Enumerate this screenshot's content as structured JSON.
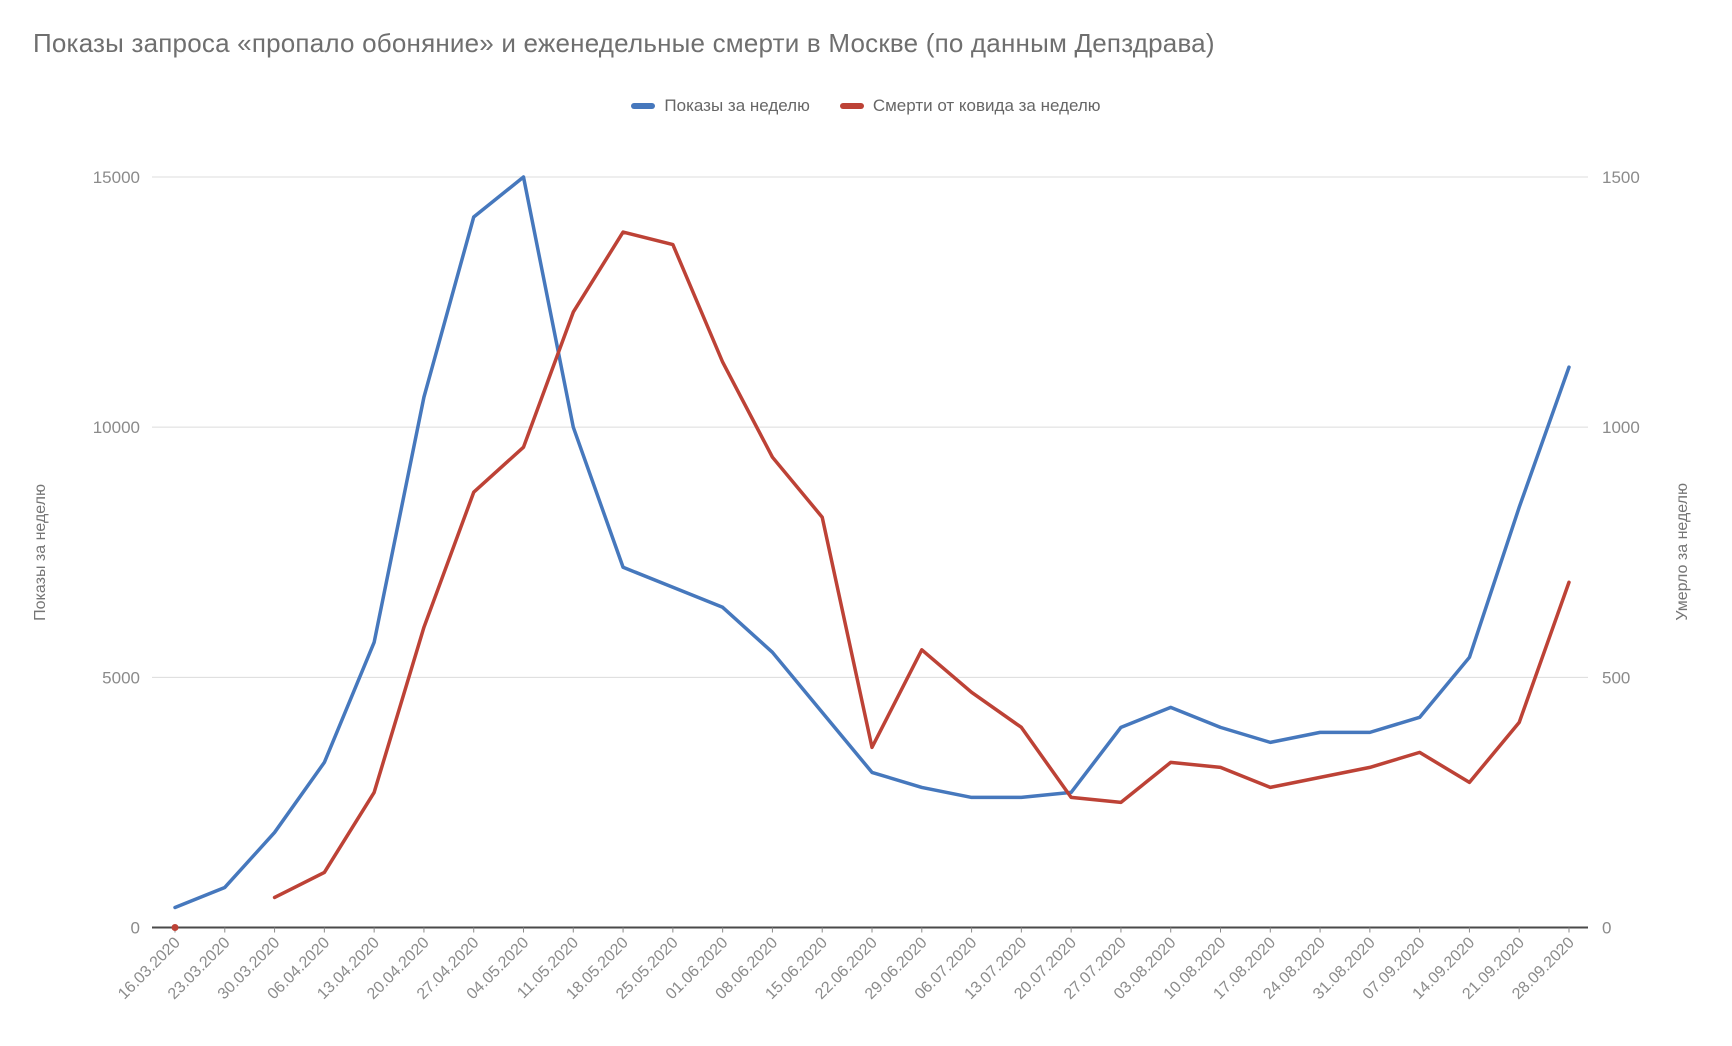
{
  "chart_data": {
    "type": "line",
    "title": "Показы запроса «пропало обоняние» и еженедельные смерти в Москве (по данным Депздрава)",
    "categories": [
      "16.03.2020",
      "23.03.2020",
      "30.03.2020",
      "06.04.2020",
      "13.04.2020",
      "20.04.2020",
      "27.04.2020",
      "04.05.2020",
      "11.05.2020",
      "18.05.2020",
      "25.05.2020",
      "01.06.2020",
      "08.06.2020",
      "15.06.2020",
      "22.06.2020",
      "29.06.2020",
      "06.07.2020",
      "13.07.2020",
      "20.07.2020",
      "27.07.2020",
      "03.08.2020",
      "10.08.2020",
      "17.08.2020",
      "24.08.2020",
      "31.08.2020",
      "07.09.2020",
      "14.09.2020",
      "21.09.2020",
      "28.09.2020"
    ],
    "series": [
      {
        "name": "Показы за неделю",
        "axis": "left",
        "color": "#4678bd",
        "values": [
          400,
          800,
          1900,
          3300,
          5700,
          10600,
          14200,
          15000,
          10000,
          7200,
          6800,
          6400,
          5500,
          4300,
          3100,
          2800,
          2600,
          2600,
          2700,
          4000,
          4400,
          4000,
          3700,
          3900,
          3900,
          4200,
          5400,
          8400,
          11200
        ]
      },
      {
        "name": "Смерти от ковида за неделю",
        "axis": "right",
        "color": "#bd4236",
        "values": [
          0,
          null,
          60,
          110,
          270,
          600,
          870,
          960,
          1230,
          1390,
          1365,
          1130,
          940,
          820,
          360,
          555,
          470,
          400,
          260,
          250,
          330,
          320,
          280,
          300,
          320,
          350,
          290,
          410,
          690
        ]
      }
    ],
    "ylabel_left": "Показы за неделю",
    "ylabel_right": "Умерло за неделю",
    "yticks_left": [
      0,
      5000,
      10000,
      15000
    ],
    "yticks_right": [
      0,
      500,
      1000,
      1500
    ],
    "ylim_left": [
      0,
      15000
    ],
    "ylim_right": [
      0,
      1500
    ],
    "grid": true,
    "legend_position": "top",
    "colors": {
      "grid": "#dcdcdc",
      "axis_line": "#4a4a4a",
      "tick_text": "#8b8b8b",
      "title_text": "#6f6f6f"
    }
  }
}
